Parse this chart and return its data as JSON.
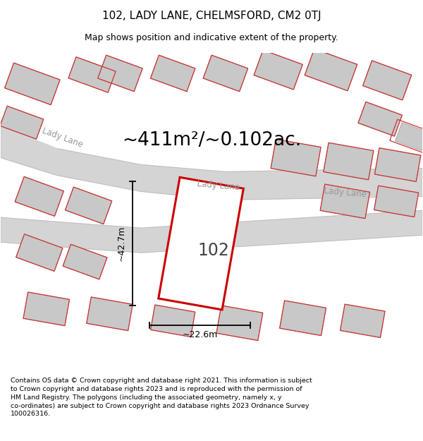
{
  "title_line1": "102, LADY LANE, CHELMSFORD, CM2 0TJ",
  "title_line2": "Map shows position and indicative extent of the property.",
  "area_text": "~411m²/~0.102ac.",
  "property_label": "102",
  "width_label": "~22.6m",
  "height_label": "~42.7m",
  "footer_text": "Contains OS data © Crown copyright and database right 2021. This information is subject to Crown copyright and database rights 2023 and is reproduced with the permission of HM Land Registry. The polygons (including the associated geometry, namely x, y co-ordinates) are subject to Crown copyright and database rights 2023 Ordnance Survey 100026316.",
  "bg_color": "#ffffff",
  "road_color": "#d4d4d4",
  "road_edge": "#b8b8b8",
  "building_color": "#c8c8c8",
  "building_edge": "#aaaaaa",
  "plot_line_color": "#cc3333",
  "property_outline_color": "#cc0000",
  "street_label_color": "#999999",
  "dim_line_color": "#000000",
  "text_color": "#000000"
}
